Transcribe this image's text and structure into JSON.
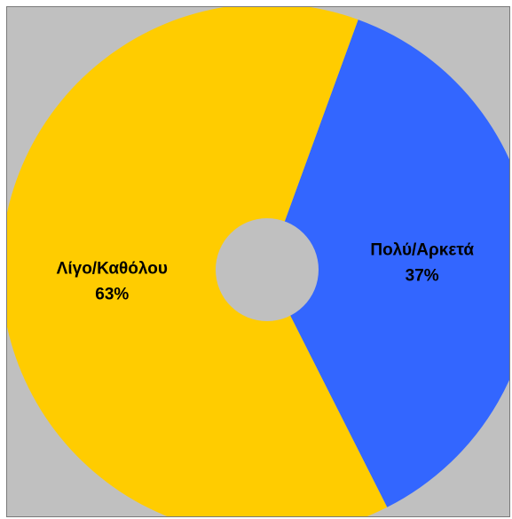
{
  "chart_data": {
    "type": "pie",
    "variant": "donut",
    "categories": [
      "Πολύ/Αρκετά",
      "Λίγο/Καθόλου"
    ],
    "values": [
      37,
      63
    ],
    "value_labels": [
      "37%",
      "63%"
    ],
    "colors": [
      "#3366ff",
      "#ffcc00"
    ],
    "background_color": "#c0c0c0",
    "hole_color": "#c0c0c0",
    "title": "",
    "legend": "none"
  }
}
